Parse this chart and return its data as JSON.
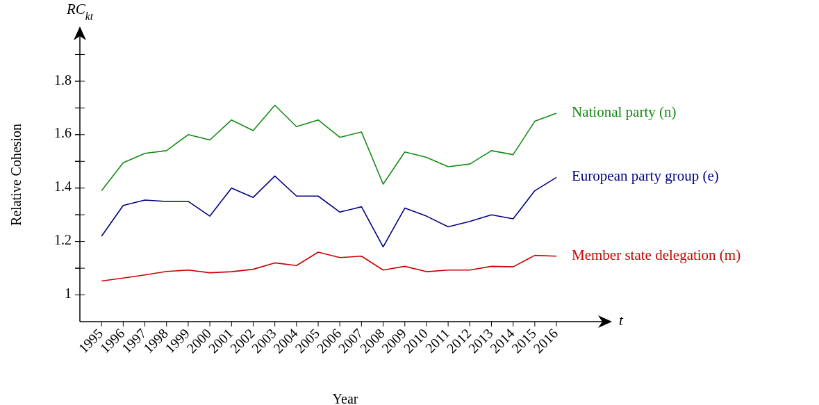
{
  "chart_data": {
    "type": "line",
    "xlabel": "Year",
    "ylabel": "Relative Cohesion",
    "annotations": [
      "RC$_{kt}$",
      "t"
    ],
    "categories": [
      "1995",
      "1996",
      "1997",
      "1998",
      "1999",
      "2000",
      "2001",
      "2002",
      "2003",
      "2004",
      "2005",
      "2006",
      "2007",
      "2008",
      "2009",
      "2010",
      "2011",
      "2012",
      "2013",
      "2014",
      "2015",
      "2016"
    ],
    "series": [
      {
        "name": "National party (n)",
        "color": "#138a13",
        "values": [
          1.39,
          1.495,
          1.53,
          1.54,
          1.6,
          1.58,
          1.655,
          1.615,
          1.71,
          1.63,
          1.655,
          1.59,
          1.61,
          1.415,
          1.535,
          1.515,
          1.48,
          1.49,
          1.54,
          1.525,
          1.65,
          1.68
        ]
      },
      {
        "name": "European party group (e)",
        "color": "#00007f",
        "values": [
          1.22,
          1.335,
          1.355,
          1.35,
          1.35,
          1.295,
          1.4,
          1.365,
          1.445,
          1.37,
          1.37,
          1.31,
          1.33,
          1.18,
          1.325,
          1.295,
          1.255,
          1.275,
          1.3,
          1.285,
          1.39,
          1.44
        ]
      },
      {
        "name": "Member state delegation (m)",
        "color": "#cc0000",
        "values": [
          1.052,
          1.063,
          1.075,
          1.088,
          1.093,
          1.083,
          1.087,
          1.096,
          1.12,
          1.11,
          1.16,
          1.14,
          1.145,
          1.093,
          1.107,
          1.087,
          1.093,
          1.093,
          1.107,
          1.105,
          1.148,
          1.145
        ]
      }
    ],
    "ylim": [
      0.9,
      2.0
    ],
    "yticks": [
      1,
      {
        "value": 1.1,
        "label": null
      },
      1.2,
      {
        "value": 1.3,
        "label": null
      },
      1.4,
      {
        "value": 1.5,
        "label": null
      },
      1.6,
      {
        "value": 1.7,
        "label": null
      },
      1.8,
      {
        "value": 1.9,
        "label": null
      }
    ],
    "grid": false,
    "marker": "none",
    "line_style": "solid"
  }
}
